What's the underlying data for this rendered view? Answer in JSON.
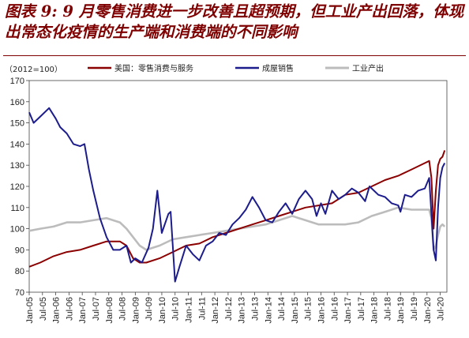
{
  "title": "图表 9: 9 月零售消费进一步改善且超预期，但工业产出回落，体现出常态化疫情的生产端和消费端的不同影响",
  "chart_data": {
    "type": "line",
    "unit_note": "（2012=100）",
    "ylim": [
      70,
      170
    ],
    "yticks": [
      70,
      80,
      90,
      100,
      110,
      120,
      130,
      140,
      150,
      160,
      170
    ],
    "x_start": "2005-01",
    "x_end": "2020-10",
    "xtick_labels": [
      "Jan-05",
      "Jul-05",
      "Jan-06",
      "Jul-06",
      "Jan-07",
      "Jul-07",
      "Jan-08",
      "Jul-08",
      "Jan-09",
      "Jul-09",
      "Jan-10",
      "Jul-10",
      "Jan-11",
      "Jul-11",
      "Jan-12",
      "Jul-12",
      "Jan-13",
      "Jul-13",
      "Jan-14",
      "Jul-14",
      "Jan-15",
      "Jul-15",
      "Jan-16",
      "Jul-16",
      "Jan-17",
      "Jul-17",
      "Jan-18",
      "Jul-18",
      "Jan-19",
      "Jul-19",
      "Jan-20",
      "Jul-20"
    ],
    "legend_position": "top",
    "series": [
      {
        "name": "美国：零售消费与服务",
        "color": "#8b0000",
        "points": [
          [
            "2005-01",
            82
          ],
          [
            "2005-06",
            84
          ],
          [
            "2005-12",
            87
          ],
          [
            "2006-06",
            89
          ],
          [
            "2006-12",
            90
          ],
          [
            "2007-06",
            92
          ],
          [
            "2007-12",
            94
          ],
          [
            "2008-06",
            94
          ],
          [
            "2008-09",
            92
          ],
          [
            "2008-12",
            86
          ],
          [
            "2009-03",
            84
          ],
          [
            "2009-06",
            84
          ],
          [
            "2009-12",
            86
          ],
          [
            "2010-06",
            89
          ],
          [
            "2010-12",
            92
          ],
          [
            "2011-06",
            93
          ],
          [
            "2011-12",
            96
          ],
          [
            "2012-06",
            98
          ],
          [
            "2012-12",
            100
          ],
          [
            "2013-06",
            102
          ],
          [
            "2013-12",
            104
          ],
          [
            "2014-06",
            106
          ],
          [
            "2014-12",
            108
          ],
          [
            "2015-06",
            110
          ],
          [
            "2015-12",
            111
          ],
          [
            "2016-06",
            112
          ],
          [
            "2016-12",
            116
          ],
          [
            "2017-06",
            117
          ],
          [
            "2017-12",
            120
          ],
          [
            "2018-06",
            123
          ],
          [
            "2018-12",
            125
          ],
          [
            "2019-06",
            128
          ],
          [
            "2019-12",
            131
          ],
          [
            "2020-02",
            132
          ],
          [
            "2020-03",
            124
          ],
          [
            "2020-04",
            100
          ],
          [
            "2020-05",
            118
          ],
          [
            "2020-06",
            130
          ],
          [
            "2020-07",
            133
          ],
          [
            "2020-08",
            134
          ],
          [
            "2020-09",
            137
          ]
        ]
      },
      {
        "name": "成屋销售",
        "color": "#1c1c8c",
        "points": [
          [
            "2005-01",
            155
          ],
          [
            "2005-03",
            150
          ],
          [
            "2005-06",
            153
          ],
          [
            "2005-10",
            157
          ],
          [
            "2006-01",
            152
          ],
          [
            "2006-03",
            148
          ],
          [
            "2006-06",
            145
          ],
          [
            "2006-09",
            140
          ],
          [
            "2006-12",
            139
          ],
          [
            "2007-02",
            140
          ],
          [
            "2007-04",
            128
          ],
          [
            "2007-06",
            118
          ],
          [
            "2007-09",
            105
          ],
          [
            "2007-12",
            96
          ],
          [
            "2008-03",
            90
          ],
          [
            "2008-06",
            90
          ],
          [
            "2008-09",
            92
          ],
          [
            "2008-11",
            84
          ],
          [
            "2009-01",
            86
          ],
          [
            "2009-04",
            84
          ],
          [
            "2009-07",
            91
          ],
          [
            "2009-09",
            100
          ],
          [
            "2009-11",
            118
          ],
          [
            "2010-01",
            98
          ],
          [
            "2010-04",
            107
          ],
          [
            "2010-05",
            108
          ],
          [
            "2010-07",
            75
          ],
          [
            "2010-09",
            82
          ],
          [
            "2010-12",
            92
          ],
          [
            "2011-03",
            88
          ],
          [
            "2011-06",
            85
          ],
          [
            "2011-09",
            92
          ],
          [
            "2011-12",
            94
          ],
          [
            "2012-03",
            98
          ],
          [
            "2012-06",
            97
          ],
          [
            "2012-09",
            102
          ],
          [
            "2012-12",
            105
          ],
          [
            "2013-03",
            109
          ],
          [
            "2013-06",
            115
          ],
          [
            "2013-09",
            110
          ],
          [
            "2013-12",
            104
          ],
          [
            "2014-03",
            103
          ],
          [
            "2014-06",
            108
          ],
          [
            "2014-09",
            112
          ],
          [
            "2014-12",
            107
          ],
          [
            "2015-03",
            114
          ],
          [
            "2015-06",
            118
          ],
          [
            "2015-09",
            114
          ],
          [
            "2015-11",
            106
          ],
          [
            "2016-01",
            112
          ],
          [
            "2016-03",
            107
          ],
          [
            "2016-06",
            118
          ],
          [
            "2016-09",
            114
          ],
          [
            "2016-12",
            116
          ],
          [
            "2017-03",
            119
          ],
          [
            "2017-06",
            117
          ],
          [
            "2017-09",
            113
          ],
          [
            "2017-11",
            120
          ],
          [
            "2018-03",
            116
          ],
          [
            "2018-06",
            115
          ],
          [
            "2018-09",
            112
          ],
          [
            "2018-12",
            111
          ],
          [
            "2019-01",
            108
          ],
          [
            "2019-03",
            116
          ],
          [
            "2019-06",
            115
          ],
          [
            "2019-09",
            118
          ],
          [
            "2019-12",
            119
          ],
          [
            "2020-02",
            124
          ],
          [
            "2020-04",
            90
          ],
          [
            "2020-05",
            85
          ],
          [
            "2020-06",
            110
          ],
          [
            "2020-07",
            124
          ],
          [
            "2020-08",
            129
          ],
          [
            "2020-09",
            131
          ]
        ]
      },
      {
        "name": "工业产出",
        "color": "#bcbcbc",
        "points": [
          [
            "2005-01",
            99
          ],
          [
            "2005-06",
            100
          ],
          [
            "2005-12",
            101
          ],
          [
            "2006-06",
            103
          ],
          [
            "2006-12",
            103
          ],
          [
            "2007-06",
            104
          ],
          [
            "2007-12",
            105
          ],
          [
            "2008-06",
            103
          ],
          [
            "2008-09",
            100
          ],
          [
            "2008-12",
            96
          ],
          [
            "2009-03",
            92
          ],
          [
            "2009-06",
            90
          ],
          [
            "2009-12",
            92
          ],
          [
            "2010-06",
            95
          ],
          [
            "2010-12",
            96
          ],
          [
            "2011-06",
            97
          ],
          [
            "2011-12",
            98
          ],
          [
            "2012-06",
            99
          ],
          [
            "2012-12",
            100
          ],
          [
            "2013-06",
            101
          ],
          [
            "2013-12",
            102
          ],
          [
            "2014-06",
            104
          ],
          [
            "2014-12",
            106
          ],
          [
            "2015-06",
            104
          ],
          [
            "2015-12",
            102
          ],
          [
            "2016-06",
            102
          ],
          [
            "2016-12",
            102
          ],
          [
            "2017-06",
            103
          ],
          [
            "2017-12",
            106
          ],
          [
            "2018-06",
            108
          ],
          [
            "2018-12",
            110
          ],
          [
            "2019-06",
            109
          ],
          [
            "2019-12",
            109
          ],
          [
            "2020-02",
            109
          ],
          [
            "2020-03",
            105
          ],
          [
            "2020-04",
            90
          ],
          [
            "2020-05",
            92
          ],
          [
            "2020-06",
            97
          ],
          [
            "2020-07",
            101
          ],
          [
            "2020-08",
            102
          ],
          [
            "2020-09",
            101
          ]
        ]
      }
    ]
  }
}
